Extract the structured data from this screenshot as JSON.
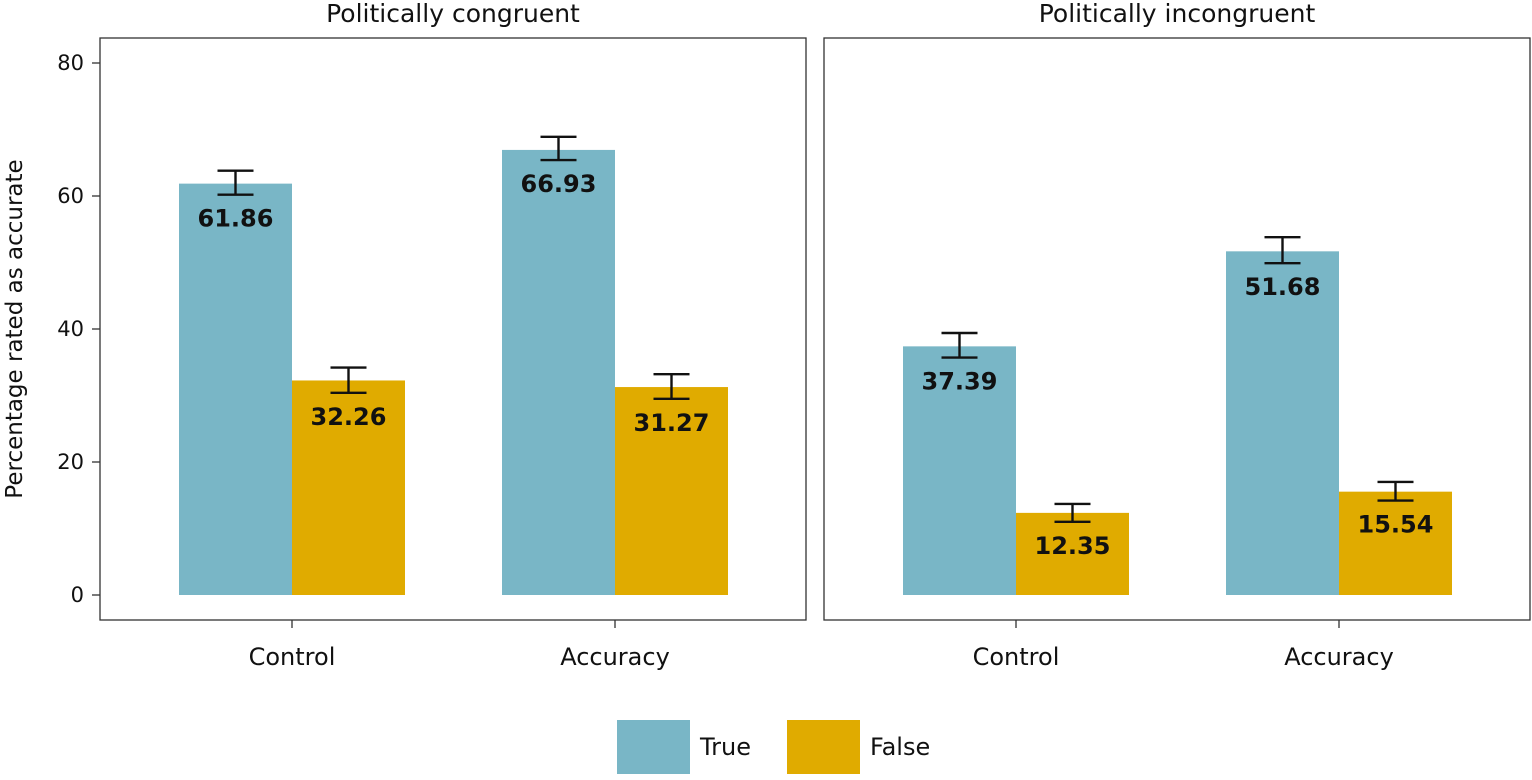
{
  "chart_data": {
    "type": "bar",
    "ylabel": "Percentage rated as accurate",
    "ylim": [
      0,
      80
    ],
    "yticks": [
      0,
      20,
      40,
      60,
      80
    ],
    "categories": [
      "Control",
      "Accuracy"
    ],
    "legend": {
      "position": "bottom-center",
      "entries": [
        {
          "name": "True",
          "color": "#79b6c6"
        },
        {
          "name": "False",
          "color": "#e0ab00"
        }
      ]
    },
    "panels": [
      {
        "title": "Politically congruent",
        "series": [
          {
            "name": "True",
            "values": [
              61.86,
              66.93
            ],
            "labels": [
              "61.86",
              "66.93"
            ],
            "err_low": [
              60.2,
              65.4
            ],
            "err_high": [
              63.8,
              68.9
            ]
          },
          {
            "name": "False",
            "values": [
              32.26,
              31.27
            ],
            "labels": [
              "32.26",
              "31.27"
            ],
            "err_low": [
              30.4,
              29.5
            ],
            "err_high": [
              34.2,
              33.2
            ]
          }
        ]
      },
      {
        "title": "Politically incongruent",
        "series": [
          {
            "name": "True",
            "values": [
              37.39,
              51.68
            ],
            "labels": [
              "37.39",
              "51.68"
            ],
            "err_low": [
              35.7,
              49.9
            ],
            "err_high": [
              39.4,
              53.8
            ]
          },
          {
            "name": "False",
            "values": [
              12.35,
              15.54
            ],
            "labels": [
              "12.35",
              "15.54"
            ],
            "err_low": [
              11.0,
              14.2
            ],
            "err_high": [
              13.7,
              17.0
            ]
          }
        ]
      }
    ]
  }
}
